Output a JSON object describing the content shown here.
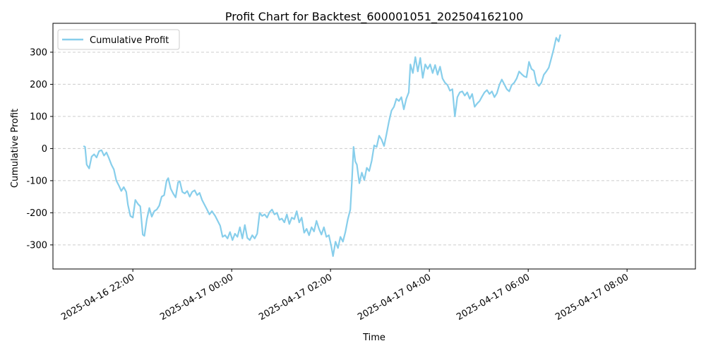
{
  "chart_data": {
    "type": "line",
    "title": "Profit Chart for Backtest_600001051_202504162100",
    "xlabel": "Time",
    "ylabel": "Cumulative Profit",
    "x_type": "datetime",
    "xlim": [
      "2025-04-16 20:23",
      "2025-04-17 09:23"
    ],
    "ylim": [
      -375,
      390
    ],
    "yticks": [
      -300,
      -200,
      -100,
      0,
      100,
      200,
      300
    ],
    "xticks": [
      "2025-04-16 22:00",
      "2025-04-17 00:00",
      "2025-04-17 02:00",
      "2025-04-17 04:00",
      "2025-04-17 06:00",
      "2025-04-17 08:00"
    ],
    "grid": "horizontal dashed",
    "legend": "upper left",
    "series": [
      {
        "name": "Cumulative Profit",
        "color": "#87CEEB",
        "points": [
          [
            "2025-04-16 21:00",
            8
          ],
          [
            "2025-04-16 21:02",
            5
          ],
          [
            "2025-04-16 21:04",
            -50
          ],
          [
            "2025-04-16 21:07",
            -62
          ],
          [
            "2025-04-16 21:10",
            -25
          ],
          [
            "2025-04-16 21:13",
            -18
          ],
          [
            "2025-04-16 21:16",
            -28
          ],
          [
            "2025-04-16 21:19",
            -8
          ],
          [
            "2025-04-16 21:22",
            -5
          ],
          [
            "2025-04-16 21:25",
            -22
          ],
          [
            "2025-04-16 21:28",
            -12
          ],
          [
            "2025-04-16 21:31",
            -30
          ],
          [
            "2025-04-16 21:34",
            -50
          ],
          [
            "2025-04-16 21:37",
            -65
          ],
          [
            "2025-04-16 21:40",
            -100
          ],
          [
            "2025-04-16 21:43",
            -115
          ],
          [
            "2025-04-16 21:46",
            -132
          ],
          [
            "2025-04-16 21:49",
            -120
          ],
          [
            "2025-04-16 21:52",
            -135
          ],
          [
            "2025-04-16 21:54",
            -175
          ],
          [
            "2025-04-16 21:57",
            -210
          ],
          [
            "2025-04-16 22:00",
            -215
          ],
          [
            "2025-04-16 22:03",
            -160
          ],
          [
            "2025-04-16 22:06",
            -172
          ],
          [
            "2025-04-16 22:09",
            -180
          ],
          [
            "2025-04-16 22:12",
            -268
          ],
          [
            "2025-04-16 22:14",
            -272
          ],
          [
            "2025-04-16 22:17",
            -220
          ],
          [
            "2025-04-16 22:20",
            -185
          ],
          [
            "2025-04-16 22:23",
            -212
          ],
          [
            "2025-04-16 22:26",
            -195
          ],
          [
            "2025-04-16 22:29",
            -190
          ],
          [
            "2025-04-16 22:32",
            -178
          ],
          [
            "2025-04-16 22:35",
            -150
          ],
          [
            "2025-04-16 22:38",
            -145
          ],
          [
            "2025-04-16 22:41",
            -100
          ],
          [
            "2025-04-16 22:43",
            -92
          ],
          [
            "2025-04-16 22:46",
            -125
          ],
          [
            "2025-04-16 22:49",
            -140
          ],
          [
            "2025-04-16 22:52",
            -152
          ],
          [
            "2025-04-16 22:55",
            -105
          ],
          [
            "2025-04-16 22:57",
            -102
          ],
          [
            "2025-04-16 23:00",
            -135
          ],
          [
            "2025-04-16 23:03",
            -140
          ],
          [
            "2025-04-16 23:06",
            -132
          ],
          [
            "2025-04-16 23:09",
            -150
          ],
          [
            "2025-04-16 23:12",
            -135
          ],
          [
            "2025-04-16 23:15",
            -130
          ],
          [
            "2025-04-16 23:18",
            -145
          ],
          [
            "2025-04-16 23:21",
            -138
          ],
          [
            "2025-04-16 23:24",
            -160
          ],
          [
            "2025-04-16 23:27",
            -175
          ],
          [
            "2025-04-16 23:30",
            -190
          ],
          [
            "2025-04-16 23:33",
            -205
          ],
          [
            "2025-04-16 23:36",
            -195
          ],
          [
            "2025-04-16 23:40",
            -210
          ],
          [
            "2025-04-16 23:43",
            -225
          ],
          [
            "2025-04-16 23:46",
            -240
          ],
          [
            "2025-04-16 23:49",
            -275
          ],
          [
            "2025-04-16 23:52",
            -270
          ],
          [
            "2025-04-16 23:55",
            -280
          ],
          [
            "2025-04-16 23:58",
            -260
          ],
          [
            "2025-04-17 00:01",
            -285
          ],
          [
            "2025-04-17 00:04",
            -265
          ],
          [
            "2025-04-17 00:07",
            -275
          ],
          [
            "2025-04-17 00:10",
            -245
          ],
          [
            "2025-04-17 00:13",
            -280
          ],
          [
            "2025-04-17 00:16",
            -238
          ],
          [
            "2025-04-17 00:19",
            -278
          ],
          [
            "2025-04-17 00:22",
            -285
          ],
          [
            "2025-04-17 00:25",
            -270
          ],
          [
            "2025-04-17 00:28",
            -280
          ],
          [
            "2025-04-17 00:31",
            -265
          ],
          [
            "2025-04-17 00:34",
            -200
          ],
          [
            "2025-04-17 00:37",
            -210
          ],
          [
            "2025-04-17 00:40",
            -205
          ],
          [
            "2025-04-17 00:43",
            -215
          ],
          [
            "2025-04-17 00:46",
            -198
          ],
          [
            "2025-04-17 00:49",
            -190
          ],
          [
            "2025-04-17 00:52",
            -205
          ],
          [
            "2025-04-17 00:55",
            -200
          ],
          [
            "2025-04-17 00:58",
            -222
          ],
          [
            "2025-04-17 01:01",
            -218
          ],
          [
            "2025-04-17 01:04",
            -230
          ],
          [
            "2025-04-17 01:07",
            -205
          ],
          [
            "2025-04-17 01:10",
            -235
          ],
          [
            "2025-04-17 01:13",
            -215
          ],
          [
            "2025-04-17 01:16",
            -220
          ],
          [
            "2025-04-17 01:19",
            -195
          ],
          [
            "2025-04-17 01:22",
            -230
          ],
          [
            "2025-04-17 01:25",
            -215
          ],
          [
            "2025-04-17 01:28",
            -262
          ],
          [
            "2025-04-17 01:31",
            -250
          ],
          [
            "2025-04-17 01:34",
            -270
          ],
          [
            "2025-04-17 01:37",
            -245
          ],
          [
            "2025-04-17 01:40",
            -258
          ],
          [
            "2025-04-17 01:43",
            -225
          ],
          [
            "2025-04-17 01:46",
            -250
          ],
          [
            "2025-04-17 01:49",
            -268
          ],
          [
            "2025-04-17 01:52",
            -245
          ],
          [
            "2025-04-17 01:55",
            -275
          ],
          [
            "2025-04-17 01:58",
            -270
          ],
          [
            "2025-04-17 02:01",
            -305
          ],
          [
            "2025-04-17 02:03",
            -335
          ],
          [
            "2025-04-17 02:06",
            -290
          ],
          [
            "2025-04-17 02:09",
            -310
          ],
          [
            "2025-04-17 02:12",
            -275
          ],
          [
            "2025-04-17 02:15",
            -290
          ],
          [
            "2025-04-17 02:18",
            -260
          ],
          [
            "2025-04-17 02:21",
            -220
          ],
          [
            "2025-04-17 02:24",
            -190
          ],
          [
            "2025-04-17 02:26",
            -100
          ],
          [
            "2025-04-17 02:28",
            5
          ],
          [
            "2025-04-17 02:30",
            -40
          ],
          [
            "2025-04-17 02:32",
            -50
          ],
          [
            "2025-04-17 02:35",
            -108
          ],
          [
            "2025-04-17 02:38",
            -75
          ],
          [
            "2025-04-17 02:41",
            -98
          ],
          [
            "2025-04-17 02:44",
            -60
          ],
          [
            "2025-04-17 02:47",
            -70
          ],
          [
            "2025-04-17 02:50",
            -38
          ],
          [
            "2025-04-17 02:53",
            10
          ],
          [
            "2025-04-17 02:56",
            5
          ],
          [
            "2025-04-17 02:59",
            40
          ],
          [
            "2025-04-17 03:02",
            28
          ],
          [
            "2025-04-17 03:05",
            8
          ],
          [
            "2025-04-17 03:08",
            45
          ],
          [
            "2025-04-17 03:11",
            85
          ],
          [
            "2025-04-17 03:14",
            118
          ],
          [
            "2025-04-17 03:17",
            130
          ],
          [
            "2025-04-17 03:20",
            155
          ],
          [
            "2025-04-17 03:23",
            148
          ],
          [
            "2025-04-17 03:26",
            160
          ],
          [
            "2025-04-17 03:29",
            122
          ],
          [
            "2025-04-17 03:32",
            155
          ],
          [
            "2025-04-17 03:35",
            175
          ],
          [
            "2025-04-17 03:37",
            262
          ],
          [
            "2025-04-17 03:40",
            235
          ],
          [
            "2025-04-17 03:43",
            285
          ],
          [
            "2025-04-17 03:46",
            240
          ],
          [
            "2025-04-17 03:49",
            282
          ],
          [
            "2025-04-17 03:52",
            220
          ],
          [
            "2025-04-17 03:55",
            262
          ],
          [
            "2025-04-17 03:58",
            248
          ],
          [
            "2025-04-17 04:01",
            262
          ],
          [
            "2025-04-17 04:04",
            235
          ],
          [
            "2025-04-17 04:07",
            260
          ],
          [
            "2025-04-17 04:10",
            230
          ],
          [
            "2025-04-17 04:13",
            255
          ],
          [
            "2025-04-17 04:16",
            218
          ],
          [
            "2025-04-17 04:19",
            205
          ],
          [
            "2025-04-17 04:22",
            198
          ],
          [
            "2025-04-17 04:25",
            180
          ],
          [
            "2025-04-17 04:28",
            185
          ],
          [
            "2025-04-17 04:31",
            100
          ],
          [
            "2025-04-17 04:34",
            160
          ],
          [
            "2025-04-17 04:37",
            175
          ],
          [
            "2025-04-17 04:40",
            178
          ],
          [
            "2025-04-17 04:43",
            165
          ],
          [
            "2025-04-17 04:46",
            175
          ],
          [
            "2025-04-17 04:49",
            155
          ],
          [
            "2025-04-17 04:52",
            170
          ],
          [
            "2025-04-17 04:55",
            130
          ],
          [
            "2025-04-17 04:58",
            140
          ],
          [
            "2025-04-17 05:01",
            148
          ],
          [
            "2025-04-17 05:04",
            162
          ],
          [
            "2025-04-17 05:07",
            175
          ],
          [
            "2025-04-17 05:10",
            182
          ],
          [
            "2025-04-17 05:13",
            170
          ],
          [
            "2025-04-17 05:16",
            178
          ],
          [
            "2025-04-17 05:19",
            160
          ],
          [
            "2025-04-17 05:22",
            172
          ],
          [
            "2025-04-17 05:25",
            198
          ],
          [
            "2025-04-17 05:28",
            215
          ],
          [
            "2025-04-17 05:31",
            200
          ],
          [
            "2025-04-17 05:34",
            185
          ],
          [
            "2025-04-17 05:37",
            178
          ],
          [
            "2025-04-17 05:40",
            198
          ],
          [
            "2025-04-17 05:43",
            205
          ],
          [
            "2025-04-17 05:46",
            218
          ],
          [
            "2025-04-17 05:49",
            240
          ],
          [
            "2025-04-17 05:52",
            232
          ],
          [
            "2025-04-17 05:55",
            225
          ],
          [
            "2025-04-17 05:58",
            222
          ],
          [
            "2025-04-17 06:01",
            270
          ],
          [
            "2025-04-17 06:04",
            248
          ],
          [
            "2025-04-17 06:07",
            242
          ],
          [
            "2025-04-17 06:10",
            205
          ],
          [
            "2025-04-17 06:13",
            195
          ],
          [
            "2025-04-17 06:16",
            205
          ],
          [
            "2025-04-17 06:19",
            230
          ],
          [
            "2025-04-17 06:22",
            240
          ],
          [
            "2025-04-17 06:25",
            252
          ],
          [
            "2025-04-17 06:28",
            280
          ],
          [
            "2025-04-17 06:31",
            310
          ],
          [
            "2025-04-17 06:34",
            345
          ],
          [
            "2025-04-17 06:37",
            333
          ],
          [
            "2025-04-17 06:39",
            355
          ]
        ]
      }
    ]
  }
}
